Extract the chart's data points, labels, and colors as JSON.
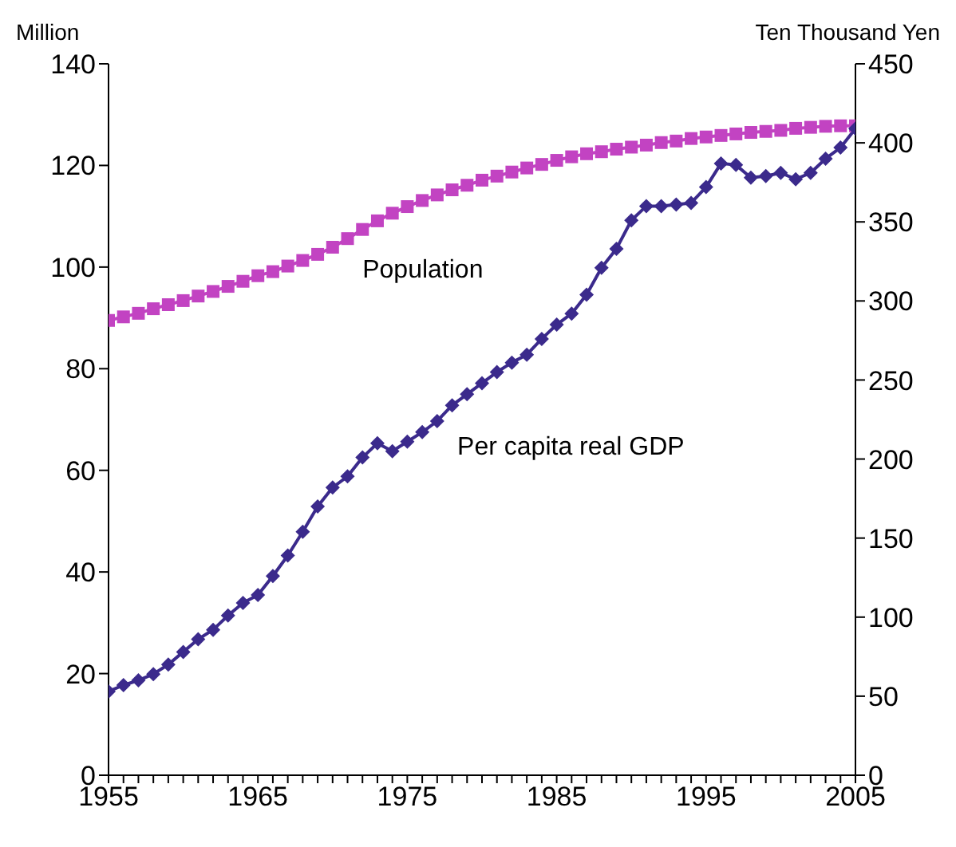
{
  "chart_data": {
    "type": "line",
    "ylabel": "Million",
    "y2label": "Ten Thousand Yen",
    "x": [
      1955,
      1956,
      1957,
      1958,
      1959,
      1960,
      1961,
      1962,
      1963,
      1964,
      1965,
      1966,
      1967,
      1968,
      1969,
      1970,
      1971,
      1972,
      1973,
      1974,
      1975,
      1976,
      1977,
      1978,
      1979,
      1980,
      1981,
      1982,
      1983,
      1984,
      1985,
      1986,
      1987,
      1988,
      1989,
      1990,
      1991,
      1992,
      1993,
      1994,
      1995,
      1996,
      1997,
      1998,
      1999,
      2000,
      2001,
      2002,
      2003,
      2004,
      2005
    ],
    "series": [
      {
        "name": "Population",
        "color": "#c243c2",
        "marker": "square",
        "values": [
          89.5,
          90.2,
          90.9,
          91.8,
          92.6,
          93.4,
          94.3,
          95.2,
          96.2,
          97.2,
          98.3,
          99.1,
          100.2,
          101.3,
          102.5,
          103.9,
          105.6,
          107.4,
          109.1,
          110.6,
          111.9,
          113.1,
          114.2,
          115.2,
          116.1,
          117.1,
          117.9,
          118.7,
          119.5,
          120.2,
          121.0,
          121.7,
          122.3,
          122.7,
          123.2,
          123.6,
          124.0,
          124.5,
          124.8,
          125.3,
          125.6,
          125.9,
          126.2,
          126.5,
          126.7,
          126.9,
          127.3,
          127.5,
          127.7,
          127.8,
          127.8
        ]
      },
      {
        "name": "Per capita real GDP",
        "color": "#3b2a8c",
        "marker": "diamond",
        "axis": "y2",
        "values": [
          53,
          57,
          60,
          64,
          70,
          78,
          86,
          92,
          101,
          109,
          114,
          126,
          139,
          154,
          170,
          182,
          189,
          201,
          210,
          205,
          211,
          217,
          224,
          234,
          241,
          248,
          255,
          261,
          266,
          276,
          285,
          292,
          304,
          321,
          333,
          351,
          360,
          360,
          361,
          362,
          372,
          387,
          386,
          378,
          379,
          381,
          377,
          381,
          390,
          397,
          409
        ]
      }
    ],
    "xlim": [
      1955,
      2005
    ],
    "xticks": [
      1955,
      {
        "value": 1956,
        "label": null
      },
      {
        "value": 1957,
        "label": null
      },
      {
        "value": 1958,
        "label": null
      },
      {
        "value": 1959,
        "label": null
      },
      {
        "value": 1960,
        "label": null
      },
      {
        "value": 1961,
        "label": null
      },
      {
        "value": 1962,
        "label": null
      },
      {
        "value": 1963,
        "label": null
      },
      {
        "value": 1964,
        "label": null
      },
      1965,
      {
        "value": 1966,
        "label": null
      },
      {
        "value": 1967,
        "label": null
      },
      {
        "value": 1968,
        "label": null
      },
      {
        "value": 1969,
        "label": null
      },
      {
        "value": 1970,
        "label": null
      },
      {
        "value": 1971,
        "label": null
      },
      {
        "value": 1972,
        "label": null
      },
      {
        "value": 1973,
        "label": null
      },
      {
        "value": 1974,
        "label": null
      },
      1975,
      {
        "value": 1976,
        "label": null
      },
      {
        "value": 1977,
        "label": null
      },
      {
        "value": 1978,
        "label": null
      },
      {
        "value": 1979,
        "label": null
      },
      {
        "value": 1980,
        "label": null
      },
      {
        "value": 1981,
        "label": null
      },
      {
        "value": 1982,
        "label": null
      },
      {
        "value": 1983,
        "label": null
      },
      {
        "value": 1984,
        "label": null
      },
      1985,
      {
        "value": 1986,
        "label": null
      },
      {
        "value": 1987,
        "label": null
      },
      {
        "value": 1988,
        "label": null
      },
      {
        "value": 1989,
        "label": null
      },
      {
        "value": 1990,
        "label": null
      },
      {
        "value": 1991,
        "label": null
      },
      {
        "value": 1992,
        "label": null
      },
      {
        "value": 1993,
        "label": null
      },
      {
        "value": 1994,
        "label": null
      },
      1995,
      {
        "value": 1996,
        "label": null
      },
      {
        "value": 1997,
        "label": null
      },
      {
        "value": 1998,
        "label": null
      },
      {
        "value": 1999,
        "label": null
      },
      {
        "value": 2000,
        "label": null
      },
      {
        "value": 2001,
        "label": null
      },
      {
        "value": 2002,
        "label": null
      },
      {
        "value": 2003,
        "label": null
      },
      {
        "value": 2004,
        "label": null
      },
      2005
    ],
    "ylim": [
      0,
      140
    ],
    "yticks": [
      0,
      20,
      40,
      60,
      80,
      100,
      120,
      140
    ],
    "y2lim": [
      0,
      450
    ],
    "y2ticks": [
      0,
      50,
      100,
      150,
      200,
      250,
      300,
      350,
      400,
      450
    ],
    "grid": false,
    "legend": false,
    "line_style": "solid"
  }
}
